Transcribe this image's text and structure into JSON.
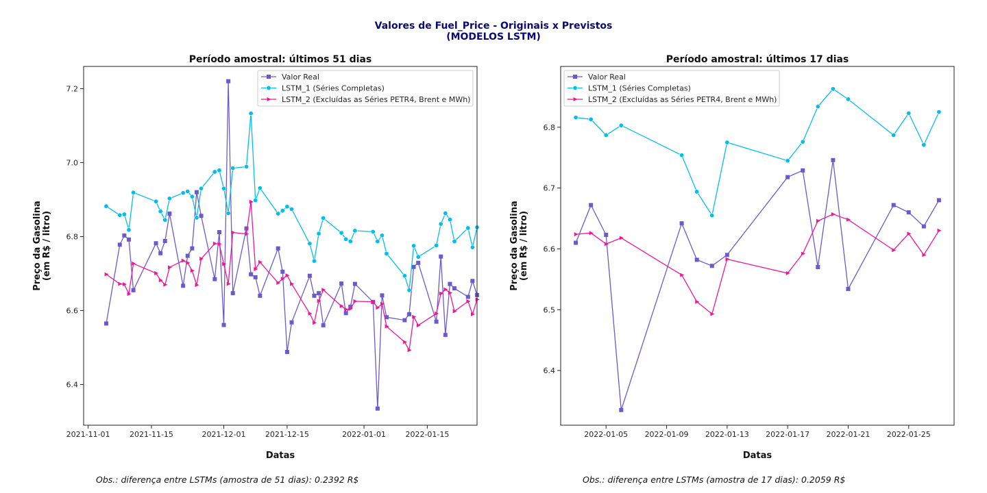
{
  "suptitle": [
    "Valores de Fuel_Price - Originais x Previstos",
    "(MODELOS LSTM)"
  ],
  "series_styles": [
    {
      "name": "Valor Real",
      "color": "#6a5acd",
      "marker": "square"
    },
    {
      "name": "LSTM_1 (Séries Completas)",
      "color": "#00bfea",
      "marker": "circle"
    },
    {
      "name": "LSTM_2 (Excluídas as Séries PETR4, Brent e MWh)",
      "color": "#f0169a",
      "marker": "triangle-right"
    }
  ],
  "chart_data": [
    {
      "type": "line",
      "title": "Período amostral: últimos 51 dias",
      "xlabel": "Datas",
      "ylabel": [
        "Preço da Gasolina",
        "(em R$ / litro)"
      ],
      "xlim": [
        "2021-10-31",
        "2022-01-26"
      ],
      "ylim": [
        6.29,
        7.26
      ],
      "xticks": [
        "2021-11-01",
        "2021-11-15",
        "2021-12-01",
        "2021-12-15",
        "2022-01-01",
        "2022-01-15"
      ],
      "yticks": [
        6.4,
        6.6,
        6.8,
        7.0,
        7.2
      ],
      "ytick_labels": [
        "6.4",
        "6.6",
        "6.8",
        "7.0",
        "7.2"
      ],
      "legend": "top-right",
      "note": "Obs.: diferença entre LSTMs (amostra de 51 dias): 0.2392 R$",
      "x": [
        "2021-11-05",
        "2021-11-08",
        "2021-11-09",
        "2021-11-10",
        "2021-11-11",
        "2021-11-16",
        "2021-11-17",
        "2021-11-18",
        "2021-11-19",
        "2021-11-22",
        "2021-11-23",
        "2021-11-24",
        "2021-11-25",
        "2021-11-26",
        "2021-11-29",
        "2021-11-30",
        "2021-12-01",
        "2021-12-02",
        "2021-12-03",
        "2021-12-06",
        "2021-12-07",
        "2021-12-08",
        "2021-12-09",
        "2021-12-13",
        "2021-12-14",
        "2021-12-15",
        "2021-12-16",
        "2021-12-20",
        "2021-12-21",
        "2021-12-22",
        "2021-12-23",
        "2021-12-27",
        "2021-12-28",
        "2021-12-29",
        "2021-12-30",
        "2022-01-03",
        "2022-01-04",
        "2022-01-05",
        "2022-01-06",
        "2022-01-10",
        "2022-01-11",
        "2022-01-12",
        "2022-01-13",
        "2022-01-17",
        "2022-01-18",
        "2022-01-19",
        "2022-01-20",
        "2022-01-21",
        "2022-01-24",
        "2022-01-25",
        "2022-01-26"
      ],
      "series": [
        {
          "name": "Valor Real",
          "values": [
            6.565,
            6.778,
            6.803,
            6.792,
            6.655,
            6.782,
            6.755,
            6.788,
            6.862,
            6.667,
            6.748,
            6.768,
            6.92,
            6.856,
            6.685,
            6.812,
            6.561,
            7.22,
            6.647,
            6.822,
            6.698,
            6.69,
            6.64,
            6.768,
            6.705,
            6.488,
            6.568,
            6.694,
            6.64,
            6.647,
            6.56,
            6.673,
            6.593,
            6.61,
            6.672,
            6.623,
            6.335,
            6.641,
            6.582,
            6.574,
            6.59,
            6.718,
            6.729,
            6.57,
            6.746,
            6.534,
            6.672,
            6.66,
            6.637,
            6.68,
            6.642
          ]
        },
        {
          "name": "LSTM_1 (Séries Completas)",
          "values": [
            6.882,
            6.858,
            6.86,
            6.818,
            6.919,
            6.895,
            6.868,
            6.845,
            6.903,
            6.918,
            6.922,
            6.908,
            6.851,
            6.93,
            6.975,
            6.979,
            6.93,
            6.863,
            6.985,
            6.989,
            7.133,
            6.898,
            6.931,
            6.862,
            6.87,
            6.881,
            6.874,
            6.781,
            6.734,
            6.808,
            6.85,
            6.81,
            6.793,
            6.787,
            6.816,
            6.813,
            6.787,
            6.803,
            6.754,
            6.694,
            6.655,
            6.775,
            6.745,
            6.776,
            6.834,
            6.863,
            6.846,
            6.787,
            6.823,
            6.771,
            6.825
          ]
        },
        {
          "name": "LSTM_2 (Excluídas as Séries PETR4, Brent e MWh)",
          "values": [
            6.698,
            6.672,
            6.671,
            6.645,
            6.727,
            6.701,
            6.682,
            6.67,
            6.717,
            6.735,
            6.729,
            6.708,
            6.669,
            6.74,
            6.781,
            6.78,
            6.726,
            6.672,
            6.811,
            6.807,
            6.894,
            6.712,
            6.731,
            6.675,
            6.686,
            6.695,
            6.672,
            6.592,
            6.567,
            6.626,
            6.656,
            6.612,
            6.603,
            6.605,
            6.625,
            6.624,
            6.608,
            6.618,
            6.557,
            6.515,
            6.493,
            6.583,
            6.56,
            6.592,
            6.646,
            6.657,
            6.648,
            6.598,
            6.625,
            6.59,
            6.63
          ]
        }
      ]
    },
    {
      "type": "line",
      "title": "Período amostral: últimos 17 dias",
      "xlabel": "Datas",
      "ylabel": [
        "Preço da Gasolina",
        "(em R$ / litro)"
      ],
      "xlim": [
        "2022-01-02",
        "2022-01-28"
      ],
      "ylim": [
        6.31,
        6.9
      ],
      "xticks": [
        "2022-01-05",
        "2022-01-09",
        "2022-01-13",
        "2022-01-17",
        "2022-01-21",
        "2022-01-25"
      ],
      "yticks": [
        6.4,
        6.5,
        6.6,
        6.7,
        6.8
      ],
      "ytick_labels": [
        "6.4",
        "6.5",
        "6.6",
        "6.7",
        "6.8"
      ],
      "legend": "top-left",
      "note": "Obs.: diferença entre LSTMs (amostra de 17 dias): 0.2059 R$",
      "x": [
        "2022-01-03",
        "2022-01-04",
        "2022-01-05",
        "2022-01-06",
        "2022-01-10",
        "2022-01-11",
        "2022-01-12",
        "2022-01-13",
        "2022-01-17",
        "2022-01-18",
        "2022-01-19",
        "2022-01-20",
        "2022-01-21",
        "2022-01-24",
        "2022-01-25",
        "2022-01-26",
        "2022-01-27"
      ],
      "series": [
        {
          "name": "Valor Real",
          "values": [
            6.61,
            6.672,
            6.623,
            6.335,
            6.642,
            6.582,
            6.572,
            6.59,
            6.718,
            6.729,
            6.57,
            6.746,
            6.534,
            6.672,
            6.66,
            6.637,
            6.68
          ]
        },
        {
          "name": "LSTM_1 (Séries Completas)",
          "values": [
            6.816,
            6.813,
            6.787,
            6.803,
            6.754,
            6.694,
            6.655,
            6.775,
            6.745,
            6.776,
            6.834,
            6.863,
            6.846,
            6.787,
            6.823,
            6.771,
            6.825
          ]
        },
        {
          "name": "LSTM_2 (Excluídas as Séries PETR4, Brent e MWh)",
          "values": [
            6.624,
            6.626,
            6.608,
            6.618,
            6.557,
            6.513,
            6.493,
            6.583,
            6.56,
            6.592,
            6.646,
            6.657,
            6.648,
            6.598,
            6.625,
            6.59,
            6.63
          ]
        }
      ]
    }
  ]
}
